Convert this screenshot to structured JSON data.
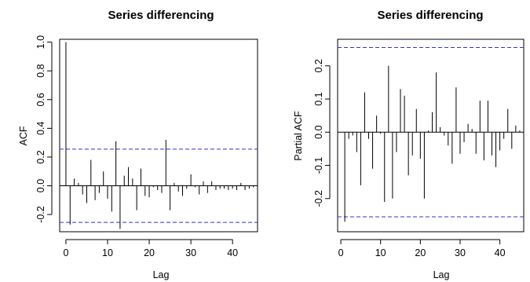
{
  "chart_data": [
    {
      "type": "bar",
      "title": "Series  differencing",
      "xlabel": "Lag",
      "ylabel": "ACF",
      "xlim": [
        -1.5,
        46
      ],
      "ylim": [
        -0.32,
        1.02
      ],
      "x_ticks": [
        0,
        10,
        20,
        30,
        40
      ],
      "y_ticks": [
        -0.2,
        0.0,
        0.2,
        0.4,
        0.6,
        0.8,
        1.0
      ],
      "y_tick_labels": [
        "-0.2",
        "0.0",
        "0.2",
        "0.4",
        "0.6",
        "0.8",
        "1.0"
      ],
      "confidence_bound": 0.255,
      "confidence_color": "#3333cc",
      "lags": [
        0,
        1,
        2,
        3,
        4,
        5,
        6,
        7,
        8,
        9,
        10,
        11,
        12,
        13,
        14,
        15,
        16,
        17,
        18,
        19,
        20,
        21,
        22,
        23,
        24,
        25,
        26,
        27,
        28,
        29,
        30,
        31,
        32,
        33,
        34,
        35,
        36,
        37,
        38,
        39,
        40,
        41,
        42,
        43,
        44,
        45
      ],
      "values": [
        1.0,
        -0.27,
        0.05,
        0.02,
        -0.06,
        -0.12,
        0.18,
        -0.1,
        -0.05,
        0.1,
        -0.09,
        -0.18,
        0.31,
        -0.3,
        0.07,
        0.13,
        0.05,
        -0.17,
        0.12,
        -0.07,
        -0.08,
        -0.01,
        -0.03,
        -0.05,
        0.32,
        -0.17,
        0.02,
        -0.04,
        -0.07,
        -0.02,
        0.08,
        -0.01,
        -0.06,
        0.03,
        -0.05,
        0.03,
        -0.03,
        -0.02,
        -0.02,
        -0.03,
        -0.02,
        -0.03,
        0.02,
        -0.03,
        -0.02,
        -0.01
      ]
    },
    {
      "type": "bar",
      "title": "Series  differencing",
      "xlabel": "Lag",
      "ylabel": "Partial ACF",
      "xlim": [
        -0.8,
        46
      ],
      "ylim": [
        -0.3,
        0.28
      ],
      "x_ticks": [
        0,
        10,
        20,
        30,
        40
      ],
      "y_ticks": [
        -0.2,
        -0.1,
        0.0,
        0.1,
        0.2
      ],
      "y_tick_labels": [
        "-0.2",
        "-0.1",
        "0.0",
        "0.1",
        "0.2"
      ],
      "confidence_bound": 0.255,
      "confidence_color": "#3333cc",
      "lags": [
        1,
        2,
        3,
        4,
        5,
        6,
        7,
        8,
        9,
        10,
        11,
        12,
        13,
        14,
        15,
        16,
        17,
        18,
        19,
        20,
        21,
        22,
        23,
        24,
        25,
        26,
        27,
        28,
        29,
        30,
        31,
        32,
        33,
        34,
        35,
        36,
        37,
        38,
        39,
        40,
        41,
        42,
        43,
        44,
        45
      ],
      "values": [
        -0.27,
        -0.02,
        -0.01,
        -0.06,
        -0.16,
        0.12,
        -0.02,
        -0.11,
        0.05,
        -0.005,
        -0.21,
        0.2,
        -0.2,
        -0.06,
        0.13,
        0.11,
        -0.13,
        -0.07,
        0.07,
        -0.08,
        -0.2,
        0.005,
        0.06,
        0.18,
        0.015,
        -0.01,
        -0.04,
        -0.095,
        0.135,
        -0.065,
        -0.03,
        0.025,
        0.01,
        -0.065,
        0.095,
        -0.085,
        0.095,
        -0.07,
        -0.105,
        -0.055,
        -0.02,
        0.07,
        -0.05,
        0.02,
        0.005
      ]
    }
  ]
}
